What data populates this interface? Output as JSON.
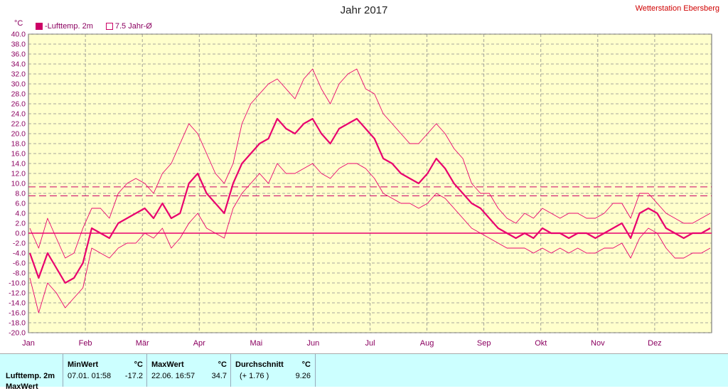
{
  "title": "Jahr 2017",
  "station": "Wetterstation Ebersberg",
  "unit": "°C",
  "legend": {
    "item1": "-Lufttemp. 2m",
    "item2": "7.5 Jahr-Ø"
  },
  "colors": {
    "plot_bg": "#ffffcc",
    "series": "#e8006e",
    "ref_line": "#cc0066",
    "grid": "#8a8a8a",
    "panel_bg": "#ccffff",
    "station": "#d00000"
  },
  "chart_data": {
    "type": "line",
    "title": "Jahr 2017",
    "ylabel": "°C",
    "ylim": [
      -20,
      40
    ],
    "yticks": [
      "40.0",
      "38.0",
      "36.0",
      "34.0",
      "32.0",
      "30.0",
      "28.0",
      "26.0",
      "24.0",
      "22.0",
      "20.0",
      "18.0",
      "16.0",
      "14.0",
      "12.0",
      "10.0",
      "8.0",
      "6.0",
      "4.0",
      "2.0",
      "0.0",
      "-2.0",
      "-4.0",
      "-6.0",
      "-8.0",
      "-10.0",
      "-12.0",
      "-14.0",
      "-16.0",
      "-18.0",
      "-20.0"
    ],
    "xlabels": [
      "Jan",
      "Feb",
      "Mär",
      "Apr",
      "Mai",
      "Jun",
      "Jul",
      "Aug",
      "Sep",
      "Okt",
      "Nov",
      "Dez"
    ],
    "grid": true,
    "legend_position": "top-left",
    "x_unit": "week",
    "series": [
      {
        "name": "-Lufttemp. 2m",
        "role": "mean",
        "values": [
          -4,
          -9,
          -4,
          -7,
          -10,
          -9,
          -6,
          1,
          0,
          -1,
          2,
          3,
          4,
          5,
          3,
          6,
          3,
          4,
          10,
          12,
          8,
          6,
          4,
          10,
          14,
          16,
          18,
          19,
          23,
          21,
          20,
          22,
          23,
          20,
          18,
          21,
          22,
          23,
          21,
          19,
          15,
          14,
          12,
          11,
          10,
          12,
          15,
          13,
          10,
          8,
          6,
          5,
          3,
          1,
          0,
          -1,
          0,
          -1,
          1,
          0,
          0,
          -1,
          0,
          0,
          -1,
          0,
          1,
          2,
          -1,
          4,
          5,
          4,
          1,
          0,
          -1,
          0,
          0,
          1
        ]
      },
      {
        "name": "max",
        "role": "max",
        "values": [
          1,
          -3,
          3,
          -1,
          -5,
          -4,
          1,
          5,
          5,
          3,
          8,
          10,
          11,
          10,
          8,
          12,
          14,
          18,
          22,
          20,
          16,
          12,
          10,
          14,
          22,
          26,
          28,
          30,
          31,
          29,
          27,
          31,
          33,
          29,
          26,
          30,
          32,
          33,
          29,
          28,
          24,
          22,
          20,
          18,
          18,
          20,
          22,
          20,
          17,
          15,
          10,
          8,
          8,
          5,
          3,
          2,
          4,
          3,
          5,
          4,
          3,
          4,
          4,
          3,
          3,
          4,
          6,
          6,
          3,
          8,
          8,
          6,
          4,
          3,
          2,
          2,
          3,
          4
        ]
      },
      {
        "name": "min",
        "role": "min",
        "values": [
          -9,
          -16,
          -10,
          -12,
          -15,
          -13,
          -11,
          -3,
          -4,
          -5,
          -3,
          -2,
          -2,
          0,
          -1,
          1,
          -3,
          -1,
          2,
          4,
          1,
          0,
          -1,
          5,
          8,
          10,
          12,
          10,
          14,
          12,
          12,
          13,
          14,
          12,
          11,
          13,
          14,
          14,
          13,
          11,
          8,
          7,
          6,
          6,
          5,
          6,
          8,
          7,
          5,
          3,
          1,
          0,
          -1,
          -2,
          -3,
          -3,
          -3,
          -4,
          -3,
          -4,
          -3,
          -4,
          -3,
          -4,
          -4,
          -3,
          -3,
          -2,
          -5,
          -1,
          1,
          0,
          -3,
          -5,
          -5,
          -4,
          -4,
          -3
        ]
      }
    ],
    "reference_lines": [
      {
        "value": 0.0,
        "style": "solid"
      },
      {
        "value": 9.3,
        "style": "dashed"
      },
      {
        "value": 7.5,
        "style": "dashed"
      }
    ]
  },
  "panel": {
    "row1_label": "Lufttemp. 2m",
    "row2_label": "MaxWert",
    "min_header": "MinWert",
    "min_unit": "°C",
    "min_date": "07.01.  01:58",
    "min_value": "-17.2",
    "max_header": "MaxWert",
    "max_unit": "°C",
    "max_date": "22.06.  16:57",
    "max_value": "34.7",
    "avg_header": "Durchschnitt",
    "avg_unit": "°C",
    "avg_diff": "(+ 1.76 )",
    "avg_value": "9.26"
  }
}
